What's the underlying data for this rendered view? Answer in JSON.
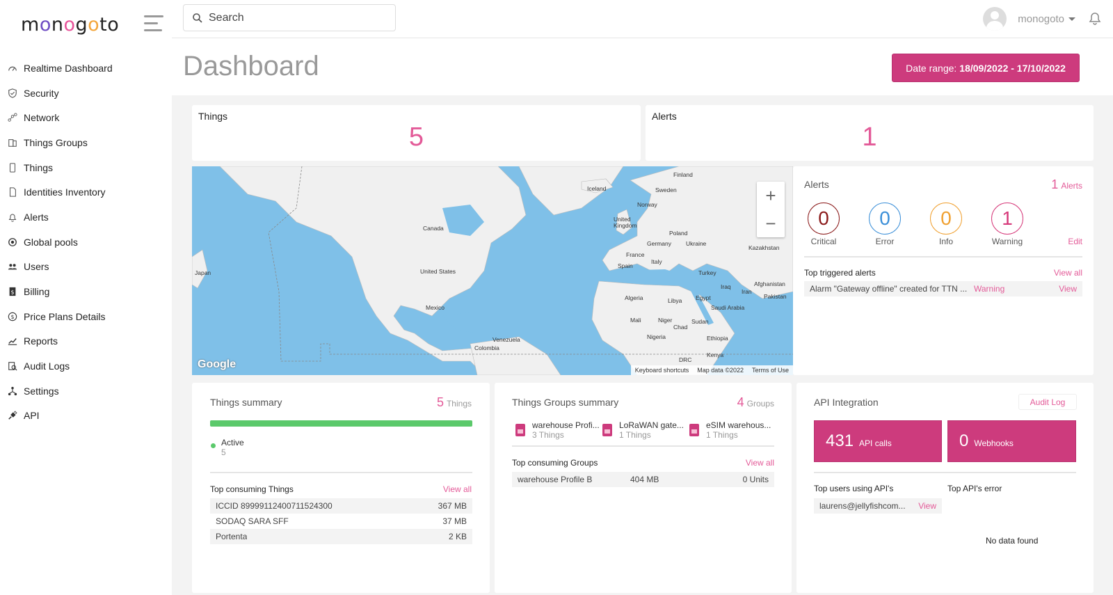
{
  "app": {
    "logo_text": "monogoto"
  },
  "sidebar": {
    "items": [
      {
        "label": "Realtime Dashboard",
        "icon": "dashboard-icon"
      },
      {
        "label": "Security",
        "icon": "shield-icon"
      },
      {
        "label": "Network",
        "icon": "network-icon"
      },
      {
        "label": "Things Groups",
        "icon": "groups-icon"
      },
      {
        "label": "Things",
        "icon": "device-icon"
      },
      {
        "label": "Identities Inventory",
        "icon": "sim-card-icon"
      },
      {
        "label": "Alerts",
        "icon": "bell-icon"
      },
      {
        "label": "Global pools",
        "icon": "globe-icon"
      },
      {
        "label": "Users",
        "icon": "users-icon"
      },
      {
        "label": "Billing",
        "icon": "billing-icon"
      },
      {
        "label": "Price Plans Details",
        "icon": "dollar-icon"
      },
      {
        "label": "Reports",
        "icon": "chart-icon"
      },
      {
        "label": "Audit Logs",
        "icon": "audit-icon"
      },
      {
        "label": "Settings",
        "icon": "settings-icon"
      },
      {
        "label": "API",
        "icon": "plug-icon"
      }
    ]
  },
  "topbar": {
    "search_placeholder": "Search",
    "username": "monogoto"
  },
  "header": {
    "title": "Dashboard",
    "date_range_label": "Date range:",
    "date_range_value": "18/09/2022 - 17/10/2022"
  },
  "stats": {
    "things_label": "Things",
    "things_value": "5",
    "alerts_label": "Alerts",
    "alerts_value": "1"
  },
  "map": {
    "labels": [
      "Finland",
      "Iceland",
      "Sweden",
      "Norway",
      "Canada",
      "United Kingdom",
      "Poland",
      "Germany",
      "Ukraine",
      "France",
      "Kazakhstan",
      "Spain",
      "Italy",
      "Turkey",
      "United States",
      "Iraq",
      "Afghanistan",
      "Iran",
      "Pakistan",
      "Japan",
      "Algeria",
      "Libya",
      "Egypt",
      "Saudi Arabia",
      "Mexico",
      "Mali",
      "Niger",
      "Chad",
      "Sudan",
      "Venezuela",
      "Nigeria",
      "Ethiopia",
      "Colombia",
      "Kenya",
      "DRC"
    ],
    "keyboard_shortcuts": "Keyboard shortcuts",
    "map_data": "Map data ©2022",
    "terms": "Terms of Use",
    "google": "Google"
  },
  "alerts_panel": {
    "title": "Alerts",
    "count": "1",
    "count_label": "Alerts",
    "levels": [
      {
        "label": "Critical",
        "value": "0",
        "color": "#8b1a1a"
      },
      {
        "label": "Error",
        "value": "0",
        "color": "#3b8fd8"
      },
      {
        "label": "Info",
        "value": "0",
        "color": "#f0a030"
      },
      {
        "label": "Warning",
        "value": "1",
        "color": "#d6397a"
      }
    ],
    "edit_label": "Edit",
    "top_title": "Top triggered alerts",
    "view_all": "View all",
    "top_row": {
      "text": "Alarm \"Gateway offline\" created for TTN ...",
      "level": "Warning",
      "action": "View"
    }
  },
  "things_summary": {
    "title": "Things summary",
    "count": "5",
    "count_label": "Things",
    "progress_active_fraction": 1.0,
    "legend_label": "Active",
    "legend_value": "5",
    "top_title": "Top consuming Things",
    "view_all": "View all",
    "rows": [
      {
        "name": "ICCID 89999112400711524300",
        "value": "367 MB"
      },
      {
        "name": "SODAQ SARA SFF",
        "value": "37 MB"
      },
      {
        "name": "Portenta",
        "value": "2 KB"
      }
    ]
  },
  "groups_summary": {
    "title": "Things Groups summary",
    "count": "4",
    "count_label": "Groups",
    "groups": [
      {
        "name": "warehouse Profi...",
        "things": "3 Things"
      },
      {
        "name": "LoRaWAN gate...",
        "things": "1 Things"
      },
      {
        "name": "eSIM warehous...",
        "things": "1 Things"
      }
    ],
    "top_title": "Top consuming Groups",
    "view_all": "View all",
    "row": {
      "name": "warehouse Profile B",
      "usage": "404 MB",
      "units": "0 Units"
    }
  },
  "api": {
    "title": "API Integration",
    "audit_label": "Audit Log",
    "calls_value": "431",
    "calls_label": "API calls",
    "webhooks_value": "0",
    "webhooks_label": "Webhooks",
    "top_users_title": "Top users using API's",
    "top_error_title": "Top API's error",
    "user_row": {
      "email": "laurens@jellyfishcom...",
      "action": "View"
    },
    "no_data": "No data found"
  },
  "colors": {
    "accent": "#cd3b7d",
    "pink_text": "#e35a98",
    "active_green": "#5bc96b"
  }
}
